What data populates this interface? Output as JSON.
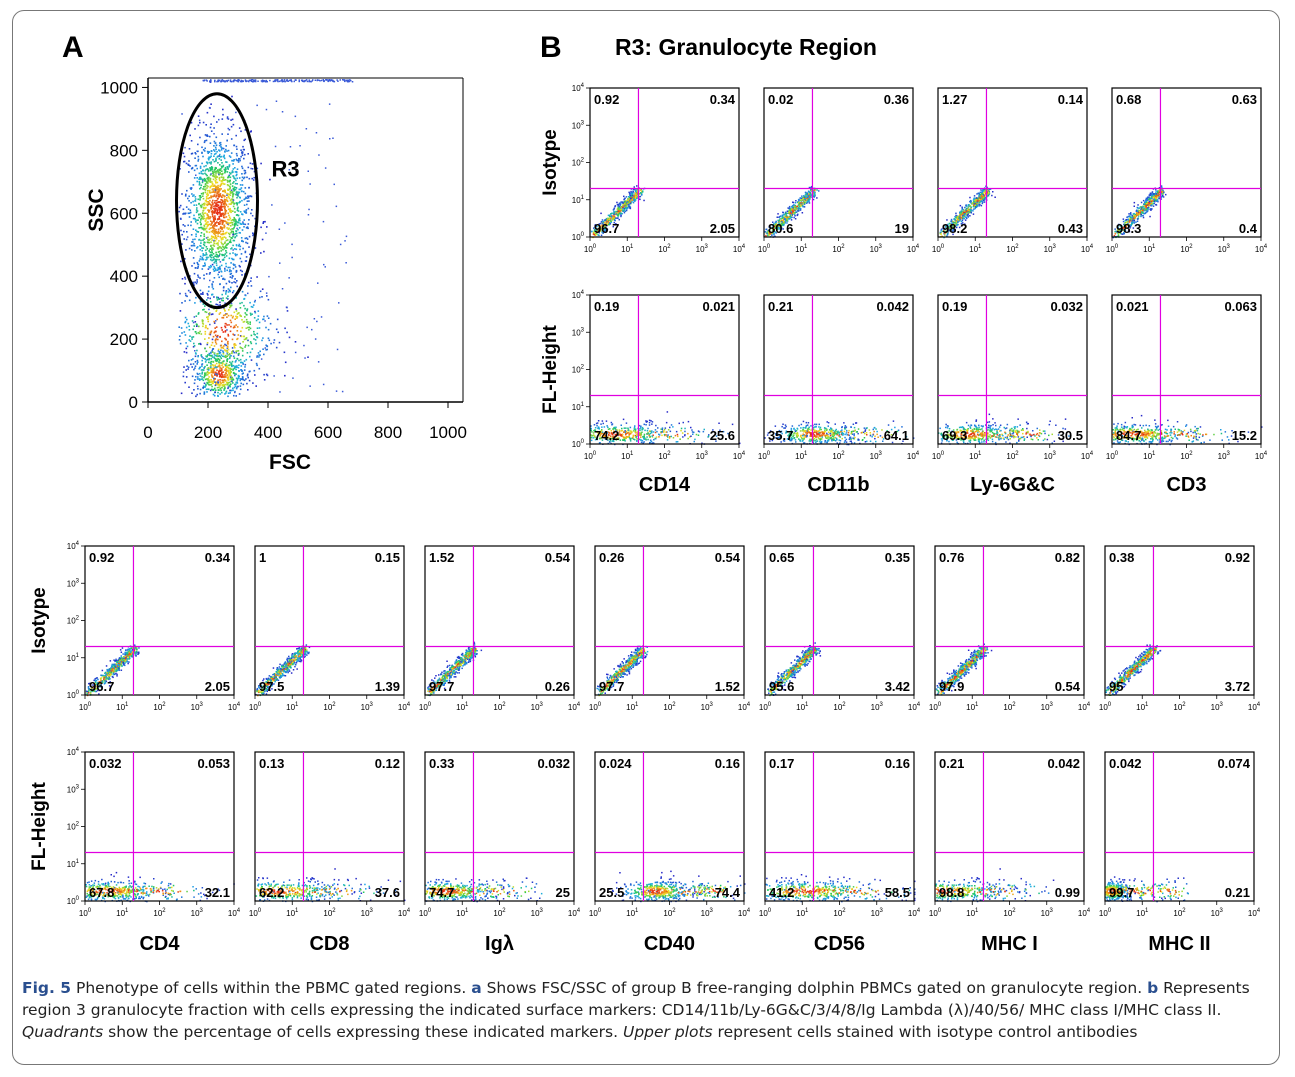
{
  "panel_labels": {
    "a": "A",
    "b": "B"
  },
  "region_title": "R3: Granulocyte Region",
  "colors": {
    "quadrant_line": "#e000e0",
    "gate": "#000000",
    "caption_accent": "#2a4f8f"
  },
  "chart_data": [
    {
      "type": "scatter",
      "panel": "A",
      "xlabel": "FSC",
      "ylabel": "SSC",
      "xlim": [
        0,
        1050
      ],
      "ylim": [
        0,
        1030
      ],
      "xticks": [
        "0",
        "200",
        "400",
        "600",
        "800",
        "1000"
      ],
      "yticks": [
        "0",
        "200",
        "400",
        "600",
        "800",
        "1000"
      ],
      "gate": {
        "label": "R3",
        "shape": "ellipse",
        "center": [
          230,
          640
        ],
        "radii": [
          135,
          340
        ]
      },
      "density_clusters": [
        {
          "center": [
            230,
            610
          ],
          "spread": [
            55,
            125
          ],
          "weight": 0.6
        },
        {
          "center": [
            235,
            90
          ],
          "spread": [
            45,
            45
          ],
          "weight": 0.2
        },
        {
          "center": [
            250,
            230
          ],
          "spread": [
            85,
            85
          ],
          "weight": 0.2
        }
      ]
    },
    {
      "type": "scatter",
      "panel": "B",
      "scale": "log",
      "axis_range": [
        "10^0",
        "10^4"
      ],
      "tick_exponents": [
        "0",
        "1",
        "2",
        "3",
        "4"
      ],
      "quadrant_cut": {
        "x": 20,
        "y": 20
      },
      "grids": [
        {
          "markers": [
            "CD14",
            "CD11b",
            "Ly-6G&C",
            "CD3"
          ],
          "rows": [
            {
              "label": "Isotype",
              "plots": [
                {
                  "ul": "0.92",
                  "ur": "0.34",
                  "ll": "96.7",
                  "lr": "2.05"
                },
                {
                  "ul": "0.02",
                  "ur": "0.36",
                  "ll": "80.6",
                  "lr": "19"
                },
                {
                  "ul": "1.27",
                  "ur": "0.14",
                  "ll": "98.2",
                  "lr": "0.43"
                },
                {
                  "ul": "0.68",
                  "ur": "0.63",
                  "ll": "98.3",
                  "lr": "0.4"
                }
              ]
            },
            {
              "label": "FL-Height",
              "plots": [
                {
                  "ul": "0.19",
                  "ur": "0.021",
                  "ll": "74.2",
                  "lr": "25.6"
                },
                {
                  "ul": "0.21",
                  "ur": "0.042",
                  "ll": "35.7",
                  "lr": "64.1"
                },
                {
                  "ul": "0.19",
                  "ur": "0.032",
                  "ll": "69.3",
                  "lr": "30.5"
                },
                {
                  "ul": "0.021",
                  "ur": "0.063",
                  "ll": "84.7",
                  "lr": "15.2"
                }
              ]
            }
          ]
        },
        {
          "markers": [
            "CD4",
            "CD8",
            "Igλ",
            "CD40",
            "CD56",
            "MHC I",
            "MHC II"
          ],
          "rows": [
            {
              "label": "Isotype",
              "plots": [
                {
                  "ul": "0.92",
                  "ur": "0.34",
                  "ll": "96.7",
                  "lr": "2.05"
                },
                {
                  "ul": "1",
                  "ur": "0.15",
                  "ll": "97.5",
                  "lr": "1.39"
                },
                {
                  "ul": "1.52",
                  "ur": "0.54",
                  "ll": "97.7",
                  "lr": "0.26"
                },
                {
                  "ul": "0.26",
                  "ur": "0.54",
                  "ll": "97.7",
                  "lr": "1.52"
                },
                {
                  "ul": "0.65",
                  "ur": "0.35",
                  "ll": "95.6",
                  "lr": "3.42"
                },
                {
                  "ul": "0.76",
                  "ur": "0.82",
                  "ll": "97.9",
                  "lr": "0.54"
                },
                {
                  "ul": "0.38",
                  "ur": "0.92",
                  "ll": "95",
                  "lr": "3.72"
                }
              ]
            },
            {
              "label": "FL-Height",
              "plots": [
                {
                  "ul": "0.032",
                  "ur": "0.053",
                  "ll": "67.8",
                  "lr": "32.1"
                },
                {
                  "ul": "0.13",
                  "ur": "0.12",
                  "ll": "62.2",
                  "lr": "37.6"
                },
                {
                  "ul": "0.33",
                  "ur": "0.032",
                  "ll": "74.7",
                  "lr": "25"
                },
                {
                  "ul": "0.024",
                  "ur": "0.16",
                  "ll": "25.5",
                  "lr": "74.4"
                },
                {
                  "ul": "0.17",
                  "ur": "0.16",
                  "ll": "41.2",
                  "lr": "58.5"
                },
                {
                  "ul": "0.21",
                  "ur": "0.042",
                  "ll": "98.8",
                  "lr": "0.99"
                },
                {
                  "ul": "0.042",
                  "ur": "0.074",
                  "ll": "99.7",
                  "lr": "0.21"
                }
              ]
            }
          ]
        }
      ]
    }
  ],
  "caption": {
    "fig_label": "Fig. 5",
    "title": " Phenotype of cells within the PBMC gated regions. ",
    "a_label": "a",
    "a_text": " Shows FSC/SSC of group B free-ranging dolphin PBMCs gated on granulocyte region. ",
    "b_label": "b",
    "b_text": " Represents region 3 granulocyte fraction with cells expressing the indicated surface markers: CD14/11b/Ly-6G&C/3/4/8/Ig Lambda (λ)/40/56/ MHC class I/MHC class II. ",
    "quadrants_word": "Quadrants",
    "quadrants_text": " show the percentage of cells expressing these indicated markers. ",
    "upper_word": "Upper plots",
    "upper_text": " represent cells stained with isotype control antibodies"
  }
}
